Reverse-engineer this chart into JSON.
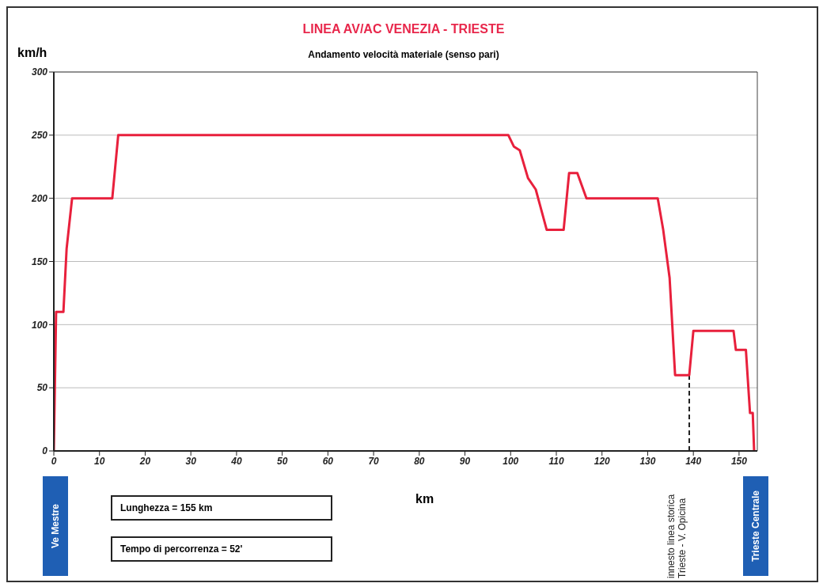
{
  "chart_data": {
    "type": "line",
    "title": "LINEA AV/AC VENEZIA - TRIESTE",
    "subtitle": "Andamento velocità materiale (senso pari)",
    "xlabel": "km",
    "ylabel": "km/h",
    "x": [
      0,
      0.5,
      2.1,
      2.8,
      4.0,
      12.8,
      14.1,
      99.5,
      100.7,
      102,
      103.8,
      105.5,
      107.9,
      111.6,
      112.8,
      114.6,
      116.6,
      132.2,
      133.4,
      134.8,
      136,
      139.1,
      140,
      148.8,
      149.3,
      151.5,
      152.4,
      153,
      153.3
    ],
    "series": [
      {
        "color": "#e8203c",
        "values": [
          0,
          110,
          110,
          160,
          200,
          200,
          250,
          250,
          241,
          238,
          216,
          207,
          175,
          175,
          220,
          220,
          200,
          200,
          175,
          137,
          60,
          60,
          95,
          95,
          80,
          80,
          30,
          30,
          0
        ]
      }
    ],
    "xlim": [
      0,
      154
    ],
    "xticks": [
      0,
      10,
      20,
      30,
      40,
      50,
      60,
      70,
      80,
      90,
      100,
      110,
      120,
      130,
      140,
      150
    ],
    "ylim": [
      0,
      300
    ],
    "yticks": [
      0,
      50,
      100,
      150,
      200,
      250,
      300
    ],
    "grid": "y",
    "marker": "none",
    "line_style": "solid",
    "legend": false,
    "ref_lines": [
      {
        "axis": "x",
        "value": 139.1,
        "label": "innesto linea storica Trieste - V. Opicina",
        "line_style": "dashed",
        "color": "#222222"
      }
    ],
    "annotations": [
      "Ve Mestre",
      "Trieste Centrale",
      "Lunghezza = 155 km",
      "Tempo di percorrenza = 52'"
    ]
  }
}
